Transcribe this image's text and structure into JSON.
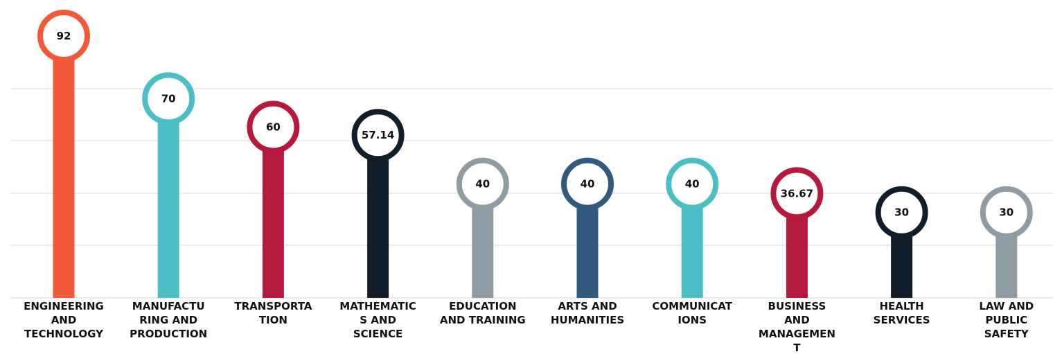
{
  "chart_data": {
    "type": "bar",
    "title": "",
    "xlabel": "",
    "ylabel": "",
    "ylim": [
      0,
      100
    ],
    "grid": true,
    "categories": [
      [
        "ENGINEERING",
        "AND",
        "TECHNOLOGY"
      ],
      [
        "MANUFACTU",
        "RING AND",
        "PRODUCTION"
      ],
      [
        "TRANSPORTA",
        "TION"
      ],
      [
        "MATHEMATIC",
        "S AND",
        "SCIENCE"
      ],
      [
        "EDUCATION",
        "AND TRAINING"
      ],
      [
        "ARTS AND",
        "HUMANITIES"
      ],
      [
        "COMMUNICAT",
        "IONS"
      ],
      [
        "BUSINESS",
        "AND",
        "MANAGEMEN",
        "T"
      ],
      [
        "HEALTH",
        "SERVICES"
      ],
      [
        "LAW AND",
        "PUBLIC",
        "SAFETY"
      ]
    ],
    "values": [
      92,
      70,
      60,
      57.14,
      40,
      40,
      40,
      36.67,
      30,
      30
    ],
    "value_labels": [
      "92",
      "70",
      "60",
      "57.14",
      "40",
      "40",
      "40",
      "36.67",
      "30",
      "30"
    ],
    "colors": [
      "#F05A3A",
      "#4BBFC3",
      "#B5193D",
      "#111E2A",
      "#909CA4",
      "#325A7E",
      "#4BBFC3",
      "#B5193D",
      "#111E2A",
      "#909CA4"
    ],
    "grid_color": "#d9d9d9",
    "label_color": "#111111"
  }
}
